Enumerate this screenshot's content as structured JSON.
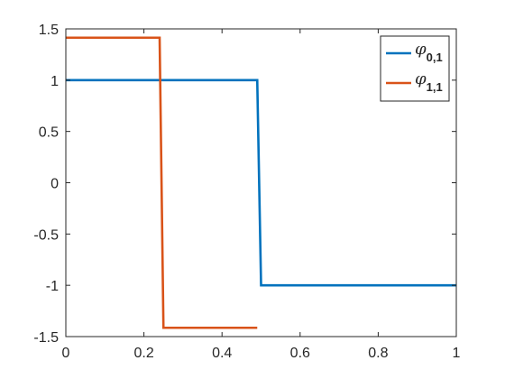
{
  "chart_data": {
    "type": "line",
    "title": "",
    "xlabel": "",
    "ylabel": "",
    "xlim": [
      0,
      1
    ],
    "ylim": [
      -1.5,
      1.5
    ],
    "xticks": [
      0,
      0.2,
      0.4,
      0.6,
      0.8,
      1
    ],
    "xtick_labels": [
      "0",
      "0.2",
      "0.4",
      "0.6",
      "0.8",
      "1"
    ],
    "yticks": [
      1.5,
      1,
      0.5,
      0,
      -0.5,
      -1,
      -1.5
    ],
    "ytick_labels": [
      "1.5",
      "1",
      "0.5",
      "0",
      "-0.5",
      "-1",
      "-1.5"
    ],
    "grid": false,
    "legend_position": "top-right",
    "series": [
      {
        "name": "φ",
        "subscript": "0,1",
        "color": "#0072BD",
        "x": [
          0,
          0.4902,
          0.5,
          1
        ],
        "y": [
          1,
          1,
          -1,
          -1
        ]
      },
      {
        "name": "φ",
        "subscript": "1,1",
        "color": "#D95319",
        "x": [
          0,
          0.2402,
          0.25,
          0.4902
        ],
        "y": [
          1.4142,
          1.4142,
          -1.4142,
          -1.4142
        ]
      }
    ]
  }
}
